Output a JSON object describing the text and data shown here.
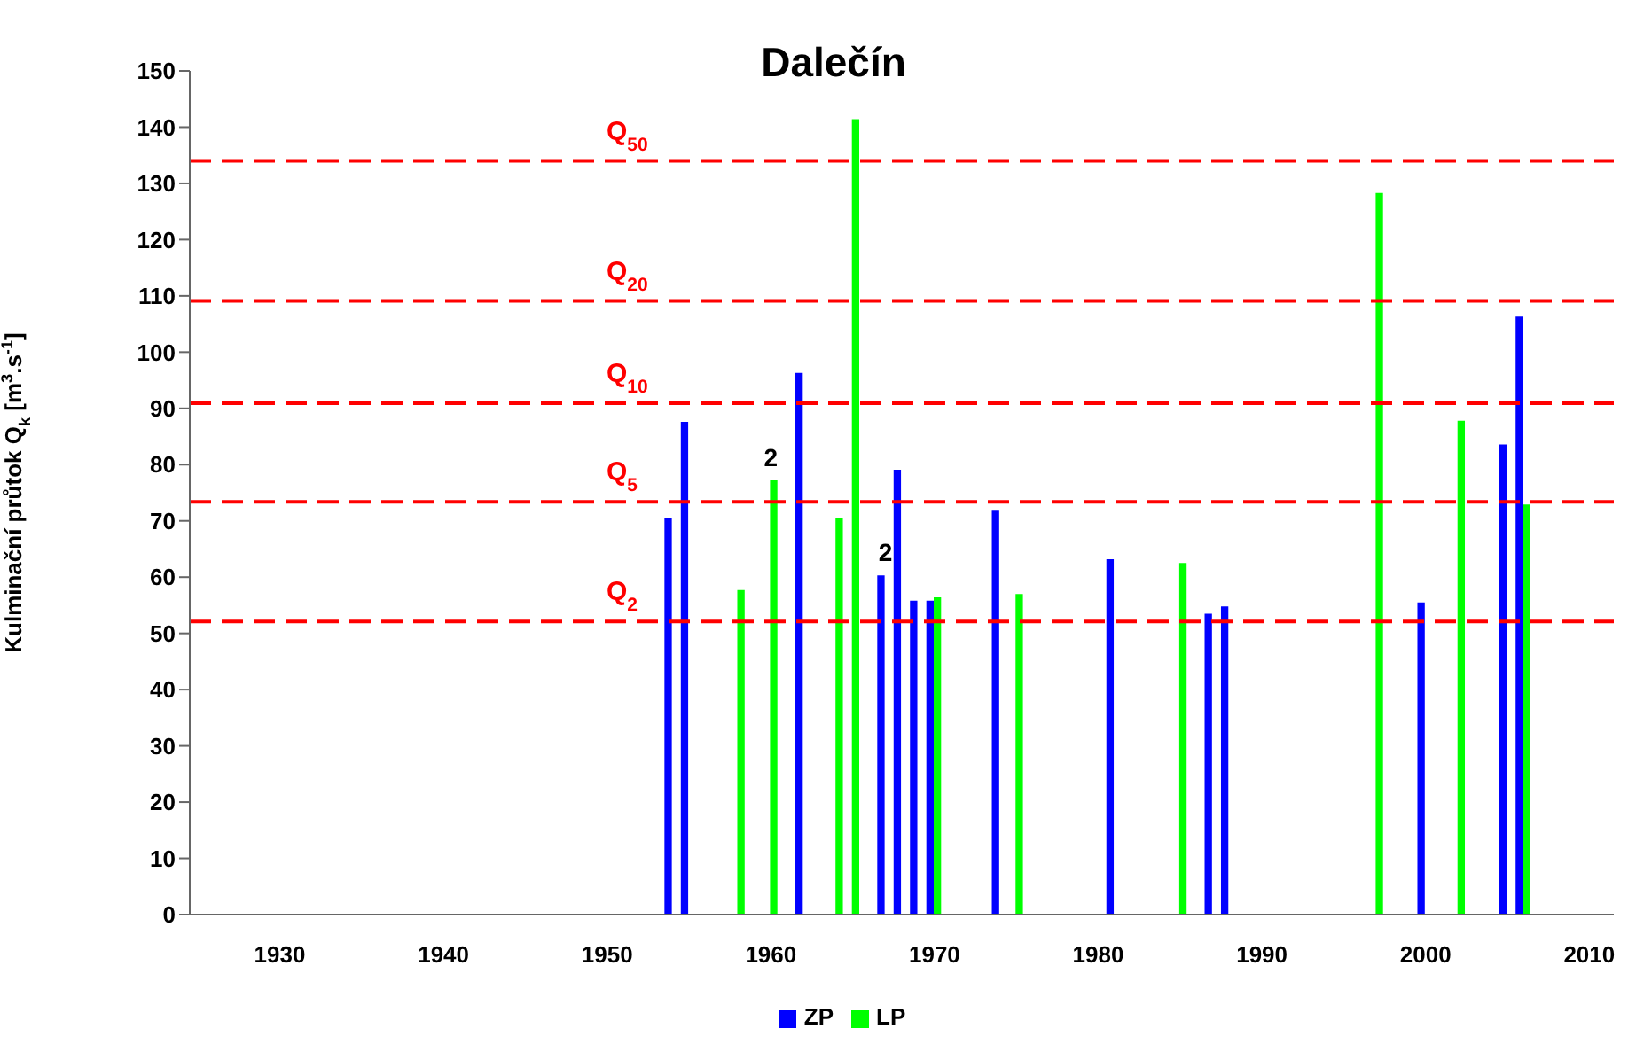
{
  "chart_data": {
    "type": "bar",
    "title": "Dalečín",
    "ylabel": "Kulminační průtok Q$_{k}$ [m$^{3}$.s$^{-1}$]",
    "xlim": [
      1924.5,
      2011.5
    ],
    "xticks": [
      1930,
      1940,
      1950,
      1960,
      1970,
      1980,
      1990,
      2000,
      2010
    ],
    "ylim": [
      0,
      150
    ],
    "yticks": [
      0,
      10,
      20,
      30,
      40,
      50,
      60,
      70,
      80,
      90,
      100,
      110,
      120,
      130,
      140,
      150
    ],
    "series": [
      {
        "name": "ZP",
        "color": "#0000ff",
        "x": [
          1954,
          1955,
          1962,
          1967,
          1968,
          1969,
          1970,
          1974,
          1981,
          1987,
          1988,
          2000,
          2005,
          2006
        ],
        "values": [
          70.5,
          87.6,
          96.3,
          60.3,
          79.1,
          55.8,
          55.8,
          71.8,
          63.2,
          53.5,
          54.8,
          55.5,
          83.6,
          106.3
        ]
      },
      {
        "name": "LP",
        "color": "#00ff00",
        "x": [
          1958,
          1960,
          1964,
          1965,
          1970,
          1975,
          1985,
          1997,
          2002,
          2006
        ],
        "values": [
          57.7,
          77.2,
          70.5,
          141.4,
          56.4,
          57,
          62.5,
          128.3,
          87.8,
          72.9
        ]
      }
    ],
    "ref_lines": [
      {
        "axis": "y",
        "value": 134,
        "label": "Q$_{50}$",
        "color": "#ff0000",
        "line_style": "dashed"
      },
      {
        "axis": "y",
        "value": 109.1,
        "label": "Q$_{20}$",
        "color": "#ff0000",
        "line_style": "dashed"
      },
      {
        "axis": "y",
        "value": 90.9,
        "label": "Q$_{10}$",
        "color": "#ff0000",
        "line_style": "dashed"
      },
      {
        "axis": "y",
        "value": 73.4,
        "label": "Q$_{5}$",
        "color": "#ff0000",
        "line_style": "dashed"
      },
      {
        "axis": "y",
        "value": 52.1,
        "label": "Q$_{2}$",
        "color": "#ff0000",
        "line_style": "dashed"
      }
    ],
    "annotations": [
      {
        "text": "2",
        "x": 1960,
        "y": 77.2
      },
      {
        "text": "2",
        "x": 1967,
        "y": 60.3
      }
    ],
    "legend": "bottom",
    "grid": false
  }
}
